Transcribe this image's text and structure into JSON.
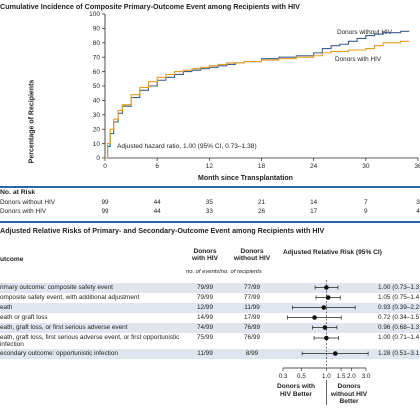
{
  "panel_a": {
    "title": "Cumulative Incidence of Composite Primary-Outcome Event among Recipients with HIV",
    "annotation": "Adjusted hazard ratio, 1.00 (95% CI, 0.73–1.38)",
    "risk": {
      "header": "No. at Risk",
      "rows": [
        {
          "label": "Donors without HIV",
          "values": [
            "99",
            "44",
            "35",
            "21",
            "14",
            "7",
            "3"
          ]
        },
        {
          "label": "Donors with HIV",
          "values": [
            "99",
            "44",
            "33",
            "26",
            "17",
            "9",
            "4"
          ]
        }
      ]
    }
  },
  "panel_b": {
    "title": "Adjusted Relative Risks of Primary- and Secondary-Outcome Event among Recipients with HIV",
    "col_outcome": "utcome",
    "col_with": "Donors with HIV",
    "col_without": "Donors without HIV",
    "col_sub": "no. of events/no. of recipients",
    "col_rr": "Adjusted Relative Risk (95% CI)",
    "favor_left": "Donors with HIV Better",
    "favor_right": "Donors without HIV Better",
    "rows": [
      {
        "outcome": "rimary outcome: composite safety event",
        "with": "79/99",
        "without": "77/99",
        "rr_text": "1.00 (0.73–1.3"
      },
      {
        "outcome": "omposite safety event, with additional adjustment",
        "with": "79/99",
        "without": "77/99",
        "rr_text": "1.05 (0.75–1.4"
      },
      {
        "outcome": "eath",
        "with": "12/99",
        "without": "11/99",
        "rr_text": "0.93 (0.39–2.2"
      },
      {
        "outcome": "eath or graft loss",
        "with": "14/99",
        "without": "17/99",
        "rr_text": "0.72 (0.34–1.5"
      },
      {
        "outcome": "eath, graft loss, or first serious adverse event",
        "with": "74/99",
        "without": "76/99",
        "rr_text": "0.96 (0.68–1.3"
      },
      {
        "outcome": "eath, graft loss, first serious adverse event, or first opportunistic infection",
        "with": "75/99",
        "without": "76/99",
        "rr_text": "1.00 (0.71–1.4"
      },
      {
        "outcome": "econdary outcome: opportunistic infection",
        "with": "11/99",
        "without": "8/99",
        "rr_text": "1.28 (0.51–3.1"
      }
    ]
  },
  "chart_data": [
    {
      "type": "line",
      "title": "Cumulative Incidence of Composite Primary-Outcome Event among Recipients with HIV",
      "xlabel": "Month since Transplantation",
      "ylabel": "Percentage of Recipients",
      "xlim": [
        0,
        36
      ],
      "ylim": [
        0,
        100
      ],
      "xticks": [
        0,
        6,
        12,
        18,
        24,
        30,
        36
      ],
      "yticks": [
        0,
        10,
        20,
        30,
        40,
        50,
        60,
        70,
        80,
        90,
        100
      ],
      "legend": "labels at line ends, upper right",
      "series": [
        {
          "name": "Donors without HIV",
          "color": "#3d5f8f",
          "points": [
            [
              0,
              0
            ],
            [
              0.3,
              8
            ],
            [
              0.6,
              17
            ],
            [
              1,
              25
            ],
            [
              1.5,
              31
            ],
            [
              2,
              36
            ],
            [
              3,
              42
            ],
            [
              4,
              47
            ],
            [
              5,
              50
            ],
            [
              6,
              54
            ],
            [
              7,
              56
            ],
            [
              8,
              58
            ],
            [
              9,
              60
            ],
            [
              10,
              61
            ],
            [
              11,
              62
            ],
            [
              12,
              63
            ],
            [
              13,
              64
            ],
            [
              14,
              65
            ],
            [
              15,
              66
            ],
            [
              16,
              67
            ],
            [
              18,
              69
            ],
            [
              20,
              70
            ],
            [
              22,
              71
            ],
            [
              24,
              73
            ],
            [
              25,
              76
            ],
            [
              26,
              78
            ],
            [
              27,
              79
            ],
            [
              28,
              81
            ],
            [
              29,
              83
            ],
            [
              30,
              85
            ],
            [
              31,
              86
            ],
            [
              32,
              87
            ],
            [
              34,
              88
            ],
            [
              35,
              88
            ]
          ]
        },
        {
          "name": "Donors with HIV",
          "color": "#e59d22",
          "points": [
            [
              0,
              0
            ],
            [
              0.3,
              10
            ],
            [
              0.6,
              20
            ],
            [
              1,
              27
            ],
            [
              1.5,
              33
            ],
            [
              2,
              37
            ],
            [
              3,
              44
            ],
            [
              4,
              49
            ],
            [
              5,
              53
            ],
            [
              6,
              56
            ],
            [
              7,
              58
            ],
            [
              8,
              60
            ],
            [
              9,
              61
            ],
            [
              10,
              62
            ],
            [
              11,
              63
            ],
            [
              12,
              64
            ],
            [
              13,
              65
            ],
            [
              14,
              66
            ],
            [
              16,
              67
            ],
            [
              18,
              68
            ],
            [
              20,
              69
            ],
            [
              22,
              70
            ],
            [
              24,
              71
            ],
            [
              25,
              73
            ],
            [
              26,
              74
            ],
            [
              28,
              75
            ],
            [
              30,
              76
            ],
            [
              31,
              78
            ],
            [
              32,
              80
            ],
            [
              34,
              81
            ],
            [
              35,
              81
            ]
          ]
        }
      ]
    },
    {
      "type": "forest",
      "x_scale": "log",
      "xticks": [
        "0.3",
        "0.5",
        "1.0",
        "1.5",
        "2.0",
        "3.0"
      ],
      "reference": 1.0,
      "estimates": [
        {
          "point": 1.0,
          "low": 0.73,
          "high": 1.38
        },
        {
          "point": 1.05,
          "low": 0.75,
          "high": 1.47
        },
        {
          "point": 0.93,
          "low": 0.39,
          "high": 2.22
        },
        {
          "point": 0.72,
          "low": 0.34,
          "high": 1.51
        },
        {
          "point": 0.96,
          "low": 0.68,
          "high": 1.34
        },
        {
          "point": 1.0,
          "low": 0.71,
          "high": 1.4
        },
        {
          "point": 1.28,
          "low": 0.51,
          "high": 3.18
        }
      ]
    }
  ]
}
